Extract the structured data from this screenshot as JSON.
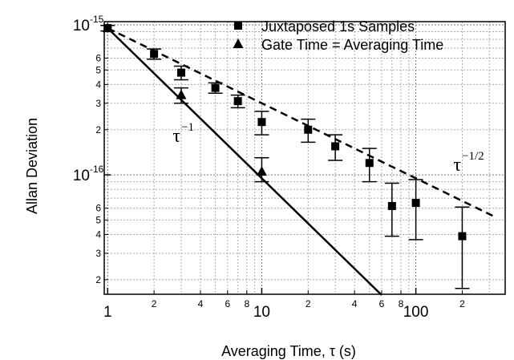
{
  "chart_data": {
    "type": "scatter",
    "xlabel": "Averaging Time, τ (s)",
    "ylabel": "Allan Deviation",
    "xscale": "log",
    "yscale": "log",
    "xlim": [
      0.95,
      380
    ],
    "ylim": [
      1.6e-17,
      1.05e-15
    ],
    "grid": true,
    "legend_position": "top-right",
    "x_major_ticks": [
      {
        "value": 1,
        "label": "1"
      },
      {
        "value": 10,
        "label": "10"
      },
      {
        "value": 100,
        "label": "100"
      }
    ],
    "x_minor_ticks": [
      {
        "value": 2,
        "label": "2"
      },
      {
        "value": 4,
        "label": "4"
      },
      {
        "value": 6,
        "label": "6"
      },
      {
        "value": 8,
        "label": "8"
      },
      {
        "value": 20,
        "label": "2"
      },
      {
        "value": 40,
        "label": "4"
      },
      {
        "value": 60,
        "label": "6"
      },
      {
        "value": 80,
        "label": "8"
      },
      {
        "value": 200,
        "label": "2"
      }
    ],
    "y_major_ticks": [
      {
        "value": 1e-15,
        "base": "10",
        "exp": "-15"
      },
      {
        "value": 1e-16,
        "base": "10",
        "exp": "-16"
      }
    ],
    "y_minor_ticks": [
      {
        "value": 6e-16,
        "label": "6"
      },
      {
        "value": 5e-16,
        "label": "5"
      },
      {
        "value": 4e-16,
        "label": "4"
      },
      {
        "value": 3e-16,
        "label": "3"
      },
      {
        "value": 2e-16,
        "label": "2"
      },
      {
        "value": 6e-17,
        "label": "6"
      },
      {
        "value": 5e-17,
        "label": "5"
      },
      {
        "value": 4e-17,
        "label": "4"
      },
      {
        "value": 3e-17,
        "label": "3"
      },
      {
        "value": 2e-17,
        "label": "2"
      }
    ],
    "series": [
      {
        "name": "Juxtaposed 1s Samples",
        "marker": "square",
        "points": [
          {
            "x": 1,
            "y": 9.5e-16,
            "lo": 9.1e-16,
            "hi": 9.9e-16
          },
          {
            "x": 2,
            "y": 6.4e-16,
            "lo": 5.9e-16,
            "hi": 6.9e-16
          },
          {
            "x": 3,
            "y": 4.8e-16,
            "lo": 4.3e-16,
            "hi": 5.3e-16
          },
          {
            "x": 5,
            "y": 3.8e-16,
            "lo": 3.5e-16,
            "hi": 4.1e-16
          },
          {
            "x": 7,
            "y": 3.1e-16,
            "lo": 2.8e-16,
            "hi": 3.4e-16
          },
          {
            "x": 10,
            "y": 2.25e-16,
            "lo": 1.85e-16,
            "hi": 2.65e-16
          },
          {
            "x": 20,
            "y": 2e-16,
            "lo": 1.65e-16,
            "hi": 2.35e-16
          },
          {
            "x": 30,
            "y": 1.55e-16,
            "lo": 1.25e-16,
            "hi": 1.85e-16
          },
          {
            "x": 50,
            "y": 1.2e-16,
            "lo": 9e-17,
            "hi": 1.5e-16
          },
          {
            "x": 70,
            "y": 6.2e-17,
            "lo": 3.9e-17,
            "hi": 8.8e-17
          },
          {
            "x": 100,
            "y": 6.5e-17,
            "lo": 3.7e-17,
            "hi": 9.3e-17
          },
          {
            "x": 200,
            "y": 3.9e-17,
            "lo": 1.75e-17,
            "hi": 6.1e-17
          }
        ]
      },
      {
        "name": "Gate Time = Averaging Time",
        "marker": "triangle",
        "points": [
          {
            "x": 1,
            "y": 9.5e-16
          },
          {
            "x": 3,
            "y": 3.4e-16,
            "lo": 3e-16,
            "hi": 3.8e-16
          },
          {
            "x": 10,
            "y": 1.05e-16,
            "lo": 9e-17,
            "hi": 1.3e-16
          }
        ]
      }
    ],
    "reference_lines": [
      {
        "label": "τ",
        "exp": "−1",
        "style": "solid",
        "points": [
          [
            1,
            9.5e-16
          ],
          [
            60,
            1.58e-17
          ]
        ]
      },
      {
        "label": "τ",
        "exp": "−1/2",
        "style": "dashed",
        "points": [
          [
            1,
            9.5e-16
          ],
          [
            320,
            5.3e-17
          ]
        ]
      }
    ]
  }
}
